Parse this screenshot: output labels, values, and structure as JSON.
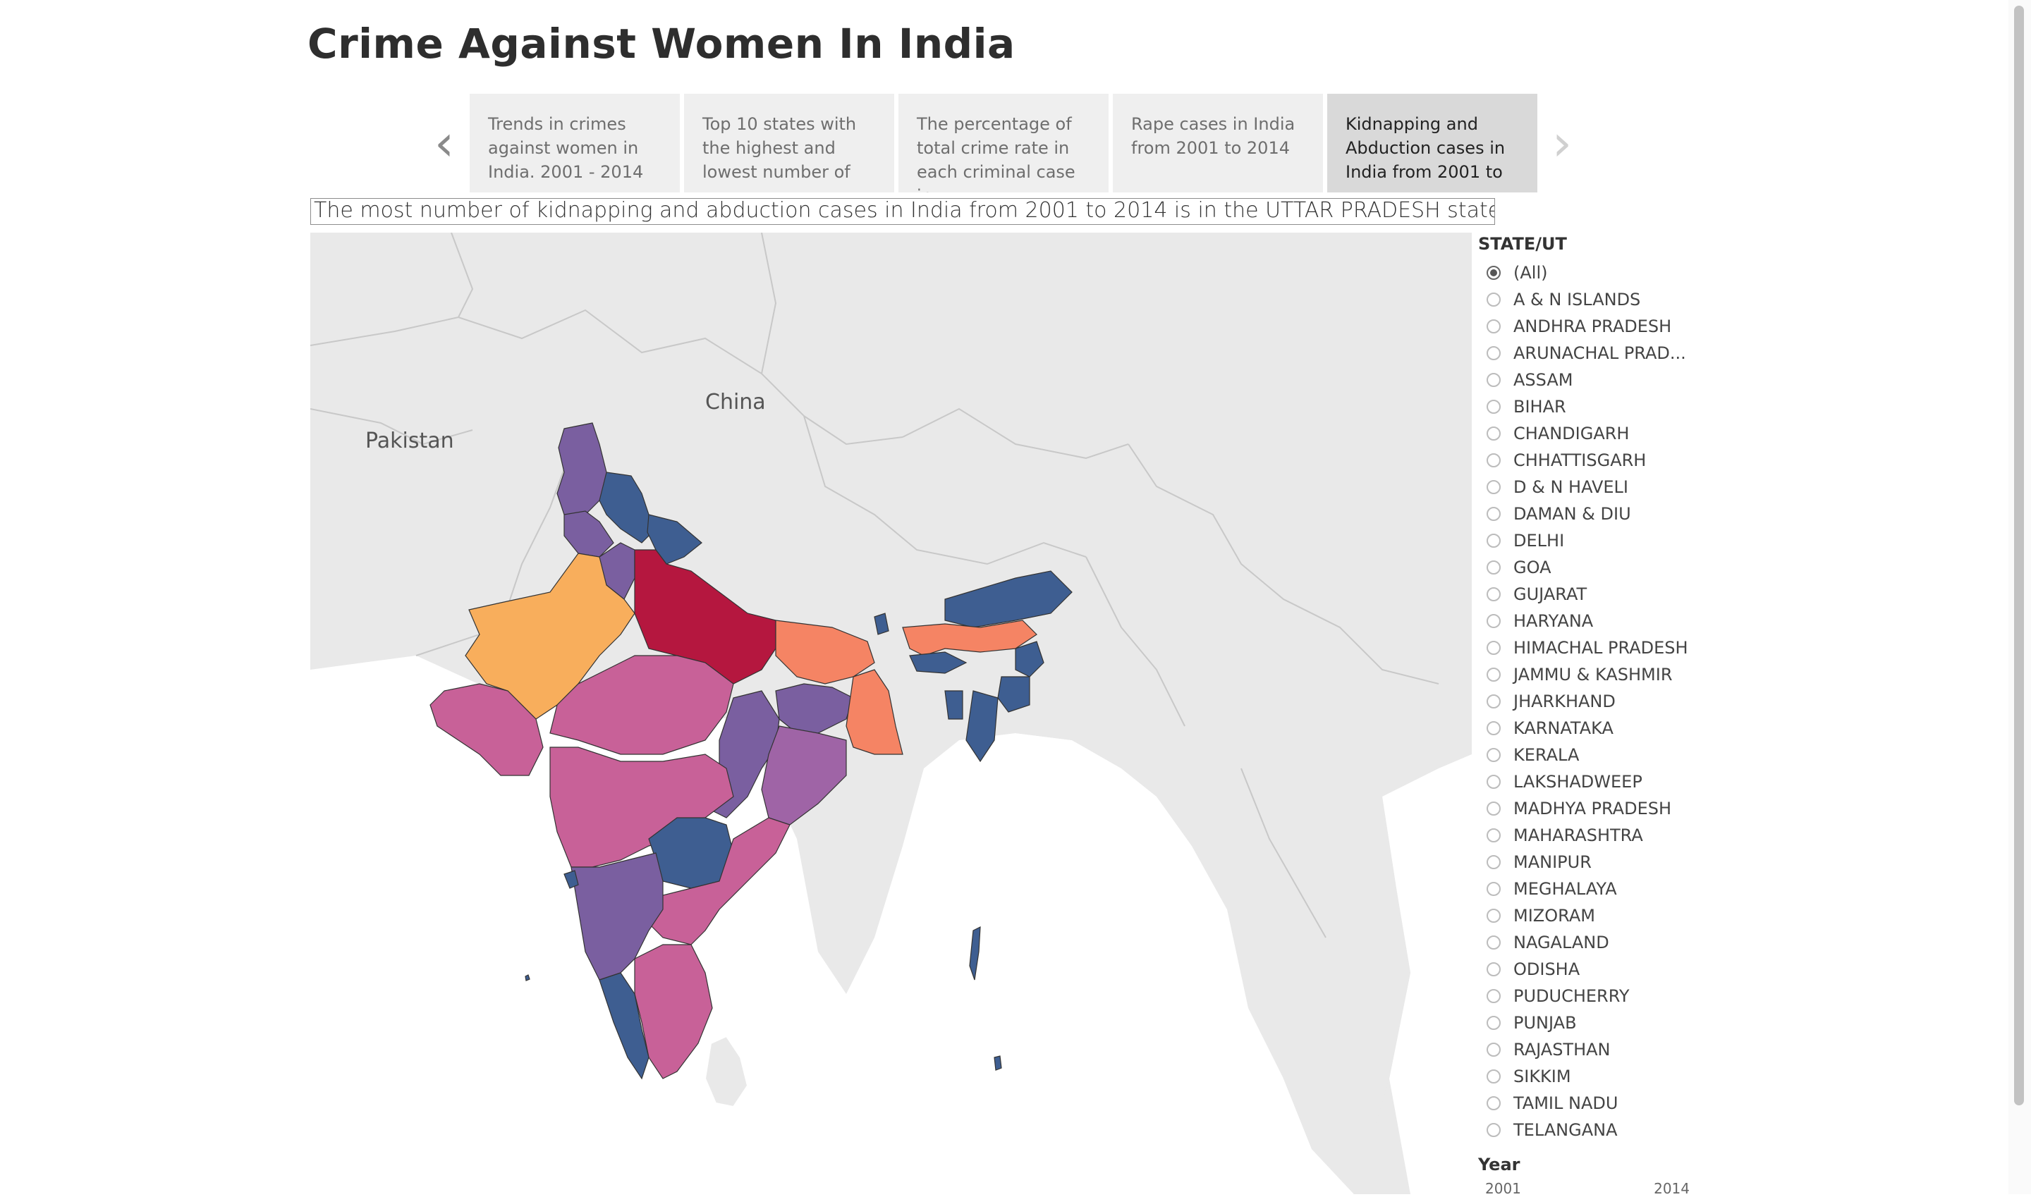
{
  "title": "Crime Against Women In India",
  "nav": {
    "prev_label": "‹",
    "next_label": "›"
  },
  "story_points": [
    {
      "label": "Trends in crimes against women in India. 2001 - 2014"
    },
    {
      "label": "Top 10 states with the highest and lowest number of"
    },
    {
      "label": "The percentage of total crime rate in each criminal case in"
    },
    {
      "label": "Rape cases in India from 2001 to 2014"
    },
    {
      "label": "Kidnapping and Abduction cases in India from 2001 to",
      "active": true
    }
  ],
  "caption": "The most number of kidnapping and abduction cases in India from 2001 to 2014 is in the UTTAR PRADESH state.",
  "map": {
    "labels": {
      "pakistan": "Pakistan",
      "china": "China"
    },
    "colors": {
      "highest": "#b5173f",
      "high": "#f8ae5c",
      "mid_high": "#f58464",
      "mid": "#c86198",
      "mid_low": "#9f64a6",
      "low": "#7a5fa0",
      "lowest": "#3e5e91",
      "background_land": "#e9e9e9",
      "water": "#ffffff"
    }
  },
  "filter": {
    "title": "STATE/UT",
    "selected": "(All)",
    "options": [
      "(All)",
      "A & N ISLANDS",
      "ANDHRA PRADESH",
      "ARUNACHAL PRAD...",
      "ASSAM",
      "BIHAR",
      "CHANDIGARH",
      "CHHATTISGARH",
      "D & N HAVELI",
      "DAMAN & DIU",
      "DELHI",
      "GOA",
      "GUJARAT",
      "HARYANA",
      "HIMACHAL PRADESH",
      "JAMMU & KASHMIR",
      "JHARKHAND",
      "KARNATAKA",
      "KERALA",
      "LAKSHADWEEP",
      "MADHYA PRADESH",
      "MAHARASHTRA",
      "MANIPUR",
      "MEGHALAYA",
      "MIZORAM",
      "NAGALAND",
      "ODISHA",
      "PUDUCHERRY",
      "PUNJAB",
      "RAJASTHAN",
      "SIKKIM",
      "TAMIL NADU",
      "TELANGANA"
    ]
  },
  "year_filter": {
    "title": "Year",
    "start": "2001",
    "end": "2014"
  }
}
